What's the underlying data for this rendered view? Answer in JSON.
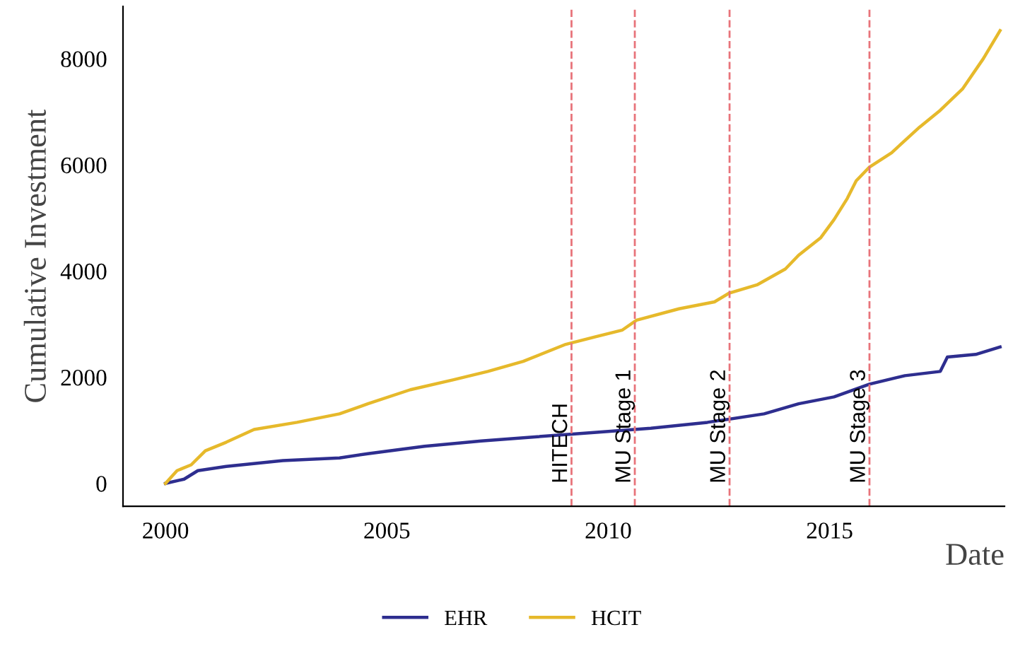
{
  "chart_data": {
    "type": "line",
    "xlabel": "Date",
    "ylabel": "Cumulative Investment",
    "xlim": [
      1999.04,
      2018.95
    ],
    "ylim": [
      -430,
      8985
    ],
    "xticks": [
      2000,
      2005,
      2010,
      2015
    ],
    "yticks": [
      0,
      2000,
      4000,
      6000,
      8000
    ],
    "grid": false,
    "legend": "bottom",
    "series": [
      {
        "name": "EHR",
        "color": "#2e2e8f",
        "x": [
          2000,
          2000.42,
          2000.73,
          2001.37,
          2002.65,
          2003.93,
          2004.57,
          2005.85,
          2007.13,
          2008.4,
          2009.68,
          2010.96,
          2012.24,
          2013.52,
          2014.3,
          2015.1,
          2015.9,
          2016.7,
          2017.5,
          2017.66,
          2018.3,
          2018.85
        ],
        "values": [
          0,
          80,
          240,
          320,
          430,
          480,
          560,
          700,
          800,
          880,
          960,
          1040,
          1150,
          1310,
          1500,
          1630,
          1870,
          2030,
          2110,
          2380,
          2430,
          2570
        ]
      },
      {
        "name": "HCIT",
        "color": "#e6b92b",
        "x": [
          2000,
          2000.26,
          2000.58,
          2000.9,
          2001.37,
          2002.0,
          2002.97,
          2003.93,
          2004.57,
          2005.53,
          2006.49,
          2007.28,
          2008.08,
          2009.04,
          2009.68,
          2010.32,
          2010.64,
          2011.6,
          2012.4,
          2012.72,
          2013.36,
          2014.0,
          2014.3,
          2014.8,
          2015.1,
          2015.4,
          2015.6,
          2015.9,
          2016.4,
          2017.03,
          2017.5,
          2018.0,
          2018.47,
          2018.85
        ],
        "values": [
          0,
          240,
          350,
          615,
          775,
          1015,
          1150,
          1310,
          1500,
          1765,
          1950,
          2110,
          2300,
          2620,
          2755,
          2890,
          3075,
          3290,
          3420,
          3580,
          3740,
          4040,
          4300,
          4630,
          4970,
          5370,
          5700,
          5960,
          6230,
          6710,
          7030,
          7430,
          8000,
          8530
        ]
      }
    ],
    "ref_lines": [
      {
        "axis": "x",
        "value": 2009.17,
        "label": "HITECH",
        "color": "#e8737a",
        "line_style": "dashed"
      },
      {
        "axis": "x",
        "value": 2010.6,
        "label": "MU Stage 1",
        "color": "#e8737a",
        "line_style": "dashed"
      },
      {
        "axis": "x",
        "value": 2012.74,
        "label": "MU Stage 2",
        "color": "#e8737a",
        "line_style": "dashed"
      },
      {
        "axis": "x",
        "value": 2015.9,
        "label": "MU Stage 3",
        "color": "#e8737a",
        "line_style": "dashed"
      }
    ]
  }
}
